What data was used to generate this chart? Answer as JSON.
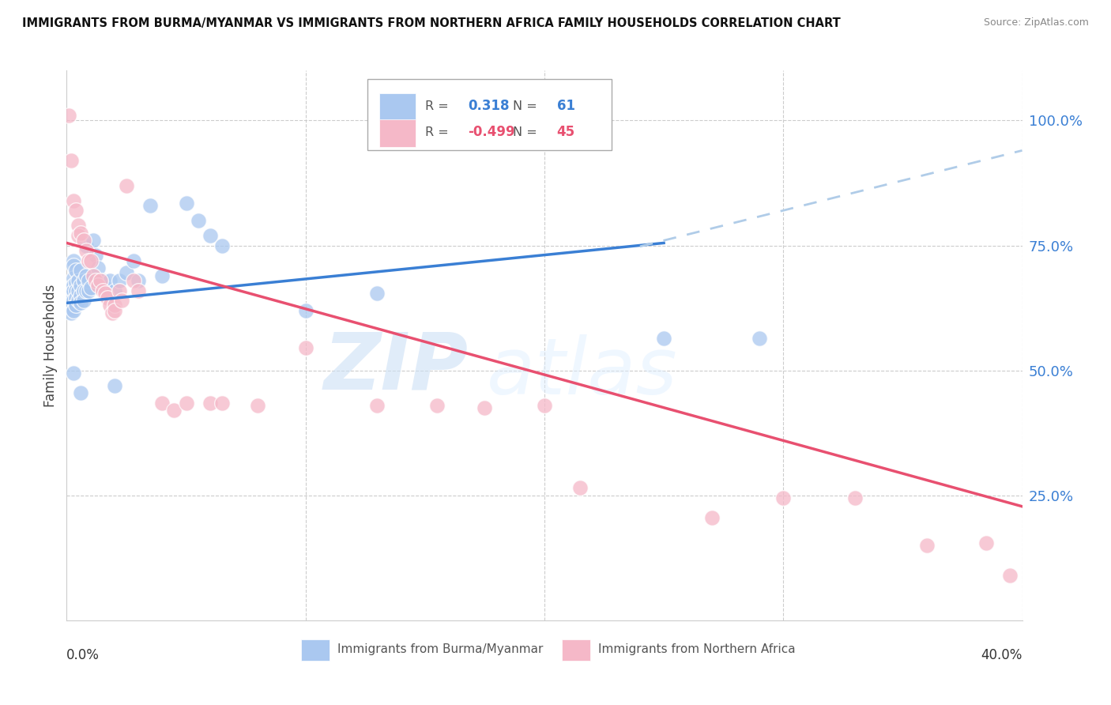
{
  "title": "IMMIGRANTS FROM BURMA/MYANMAR VS IMMIGRANTS FROM NORTHERN AFRICA FAMILY HOUSEHOLDS CORRELATION CHART",
  "source": "Source: ZipAtlas.com",
  "ylabel": "Family Households",
  "y_tick_labels": [
    "100.0%",
    "75.0%",
    "50.0%",
    "25.0%"
  ],
  "y_tick_values": [
    1.0,
    0.75,
    0.5,
    0.25
  ],
  "x_range": [
    0.0,
    0.4
  ],
  "y_range": [
    0.0,
    1.1
  ],
  "legend": {
    "blue_label": "Immigrants from Burma/Myanmar",
    "pink_label": "Immigrants from Northern Africa",
    "blue_R": "0.318",
    "blue_N": "61",
    "pink_R": "-0.499",
    "pink_N": "45"
  },
  "blue_color": "#aac8f0",
  "pink_color": "#f5b8c8",
  "blue_line_color": "#3a7fd4",
  "pink_line_color": "#e85070",
  "blue_dashed_color": "#b0cce8",
  "watermark_zip": "ZIP",
  "watermark_atlas": "atlas",
  "blue_scatter": [
    [
      0.001,
      0.66
    ],
    [
      0.001,
      0.655
    ],
    [
      0.001,
      0.64
    ],
    [
      0.001,
      0.635
    ],
    [
      0.002,
      0.665
    ],
    [
      0.002,
      0.65
    ],
    [
      0.002,
      0.638
    ],
    [
      0.002,
      0.625
    ],
    [
      0.002,
      0.615
    ],
    [
      0.003,
      0.72
    ],
    [
      0.003,
      0.71
    ],
    [
      0.003,
      0.685
    ],
    [
      0.003,
      0.67
    ],
    [
      0.003,
      0.66
    ],
    [
      0.003,
      0.64
    ],
    [
      0.003,
      0.62
    ],
    [
      0.003,
      0.495
    ],
    [
      0.004,
      0.7
    ],
    [
      0.004,
      0.675
    ],
    [
      0.004,
      0.66
    ],
    [
      0.004,
      0.645
    ],
    [
      0.004,
      0.63
    ],
    [
      0.005,
      0.68
    ],
    [
      0.005,
      0.66
    ],
    [
      0.005,
      0.64
    ],
    [
      0.006,
      0.7
    ],
    [
      0.006,
      0.67
    ],
    [
      0.006,
      0.65
    ],
    [
      0.006,
      0.635
    ],
    [
      0.006,
      0.455
    ],
    [
      0.007,
      0.68
    ],
    [
      0.007,
      0.66
    ],
    [
      0.007,
      0.64
    ],
    [
      0.008,
      0.75
    ],
    [
      0.008,
      0.69
    ],
    [
      0.008,
      0.66
    ],
    [
      0.009,
      0.68
    ],
    [
      0.009,
      0.66
    ],
    [
      0.01,
      0.665
    ],
    [
      0.011,
      0.76
    ],
    [
      0.012,
      0.73
    ],
    [
      0.013,
      0.705
    ],
    [
      0.015,
      0.68
    ],
    [
      0.016,
      0.665
    ],
    [
      0.018,
      0.68
    ],
    [
      0.02,
      0.66
    ],
    [
      0.02,
      0.47
    ],
    [
      0.022,
      0.68
    ],
    [
      0.025,
      0.695
    ],
    [
      0.028,
      0.72
    ],
    [
      0.03,
      0.68
    ],
    [
      0.035,
      0.83
    ],
    [
      0.04,
      0.69
    ],
    [
      0.05,
      0.835
    ],
    [
      0.055,
      0.8
    ],
    [
      0.06,
      0.77
    ],
    [
      0.065,
      0.75
    ],
    [
      0.1,
      0.62
    ],
    [
      0.13,
      0.655
    ],
    [
      0.25,
      0.565
    ],
    [
      0.29,
      0.565
    ]
  ],
  "pink_scatter": [
    [
      0.001,
      1.01
    ],
    [
      0.002,
      0.92
    ],
    [
      0.003,
      0.84
    ],
    [
      0.004,
      0.82
    ],
    [
      0.005,
      0.79
    ],
    [
      0.005,
      0.77
    ],
    [
      0.006,
      0.775
    ],
    [
      0.007,
      0.76
    ],
    [
      0.008,
      0.74
    ],
    [
      0.009,
      0.72
    ],
    [
      0.01,
      0.72
    ],
    [
      0.011,
      0.69
    ],
    [
      0.012,
      0.68
    ],
    [
      0.013,
      0.67
    ],
    [
      0.014,
      0.68
    ],
    [
      0.015,
      0.66
    ],
    [
      0.016,
      0.655
    ],
    [
      0.017,
      0.645
    ],
    [
      0.018,
      0.63
    ],
    [
      0.019,
      0.615
    ],
    [
      0.02,
      0.63
    ],
    [
      0.02,
      0.62
    ],
    [
      0.022,
      0.66
    ],
    [
      0.023,
      0.64
    ],
    [
      0.025,
      0.87
    ],
    [
      0.028,
      0.68
    ],
    [
      0.03,
      0.66
    ],
    [
      0.04,
      0.435
    ],
    [
      0.045,
      0.42
    ],
    [
      0.05,
      0.435
    ],
    [
      0.06,
      0.435
    ],
    [
      0.065,
      0.435
    ],
    [
      0.08,
      0.43
    ],
    [
      0.1,
      0.545
    ],
    [
      0.13,
      0.43
    ],
    [
      0.155,
      0.43
    ],
    [
      0.175,
      0.425
    ],
    [
      0.2,
      0.43
    ],
    [
      0.215,
      0.265
    ],
    [
      0.27,
      0.205
    ],
    [
      0.3,
      0.245
    ],
    [
      0.33,
      0.245
    ],
    [
      0.36,
      0.15
    ],
    [
      0.385,
      0.155
    ],
    [
      0.395,
      0.09
    ]
  ],
  "blue_solid_line": {
    "x0": 0.0,
    "y0": 0.635,
    "x1": 0.25,
    "y1": 0.755
  },
  "blue_dashed_line": {
    "x0": 0.24,
    "y0": 0.748,
    "x1": 0.4,
    "y1": 0.94
  },
  "pink_solid_line": {
    "x0": 0.0,
    "y0": 0.755,
    "x1": 0.4,
    "y1": 0.228
  }
}
